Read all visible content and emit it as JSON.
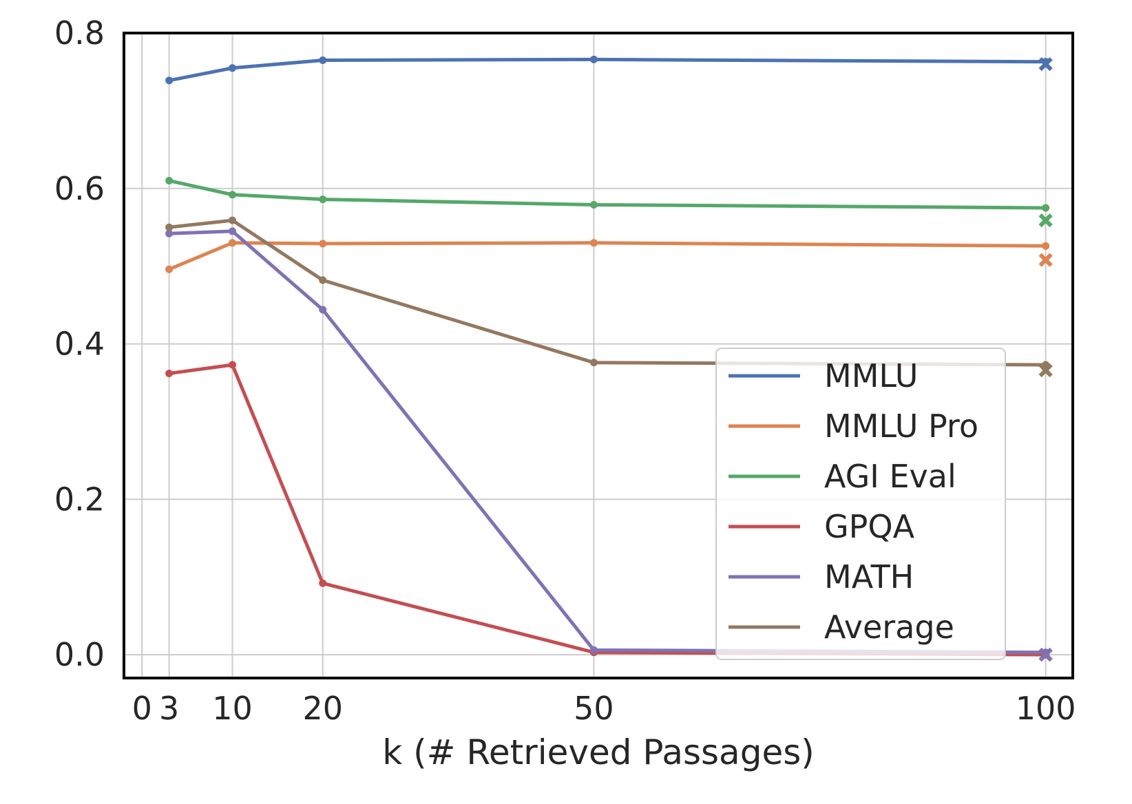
{
  "chart_data": {
    "type": "line",
    "title": "",
    "xlabel": "k (# Retrieved Passages)",
    "ylabel": "",
    "xlim": [
      -2,
      103
    ],
    "ylim": [
      -0.03,
      0.8
    ],
    "x_ticks": [
      0,
      3,
      10,
      20,
      50,
      100
    ],
    "x_tick_labels": [
      "0",
      "3",
      "10",
      "20",
      "50",
      "100"
    ],
    "y_ticks": [
      0.0,
      0.2,
      0.4,
      0.6,
      0.8
    ],
    "y_tick_labels": [
      "0.0",
      "0.2",
      "0.4",
      "0.6",
      "0.8"
    ],
    "grid": true,
    "legend_position": "lower-right",
    "x": [
      3,
      10,
      20,
      50,
      100
    ],
    "series": [
      {
        "name": "MMLU",
        "color": "#4c72b0",
        "values": [
          0.739,
          0.755,
          0.765,
          0.766,
          0.763
        ],
        "extra_marker": {
          "x": 100,
          "y": 0.76
        }
      },
      {
        "name": "MMLU Pro",
        "color": "#dd8452",
        "values": [
          0.496,
          0.53,
          0.529,
          0.53,
          0.526
        ],
        "extra_marker": {
          "x": 100,
          "y": 0.508
        }
      },
      {
        "name": "AGI Eval",
        "color": "#55a868",
        "values": [
          0.61,
          0.592,
          0.586,
          0.579,
          0.575
        ],
        "extra_marker": {
          "x": 100,
          "y": 0.559
        }
      },
      {
        "name": "GPQA",
        "color": "#c44e52",
        "values": [
          0.362,
          0.373,
          0.092,
          0.003,
          0.0
        ],
        "extra_marker": {
          "x": 100,
          "y": 0.0
        }
      },
      {
        "name": "MATH",
        "color": "#8172b3",
        "values": [
          0.542,
          0.545,
          0.444,
          0.006,
          0.003
        ],
        "extra_marker": {
          "x": 100,
          "y": 0.0
        }
      },
      {
        "name": "Average",
        "color": "#937860",
        "values": [
          0.55,
          0.559,
          0.482,
          0.376,
          0.373
        ],
        "extra_marker": {
          "x": 100,
          "y": 0.366
        }
      }
    ]
  }
}
